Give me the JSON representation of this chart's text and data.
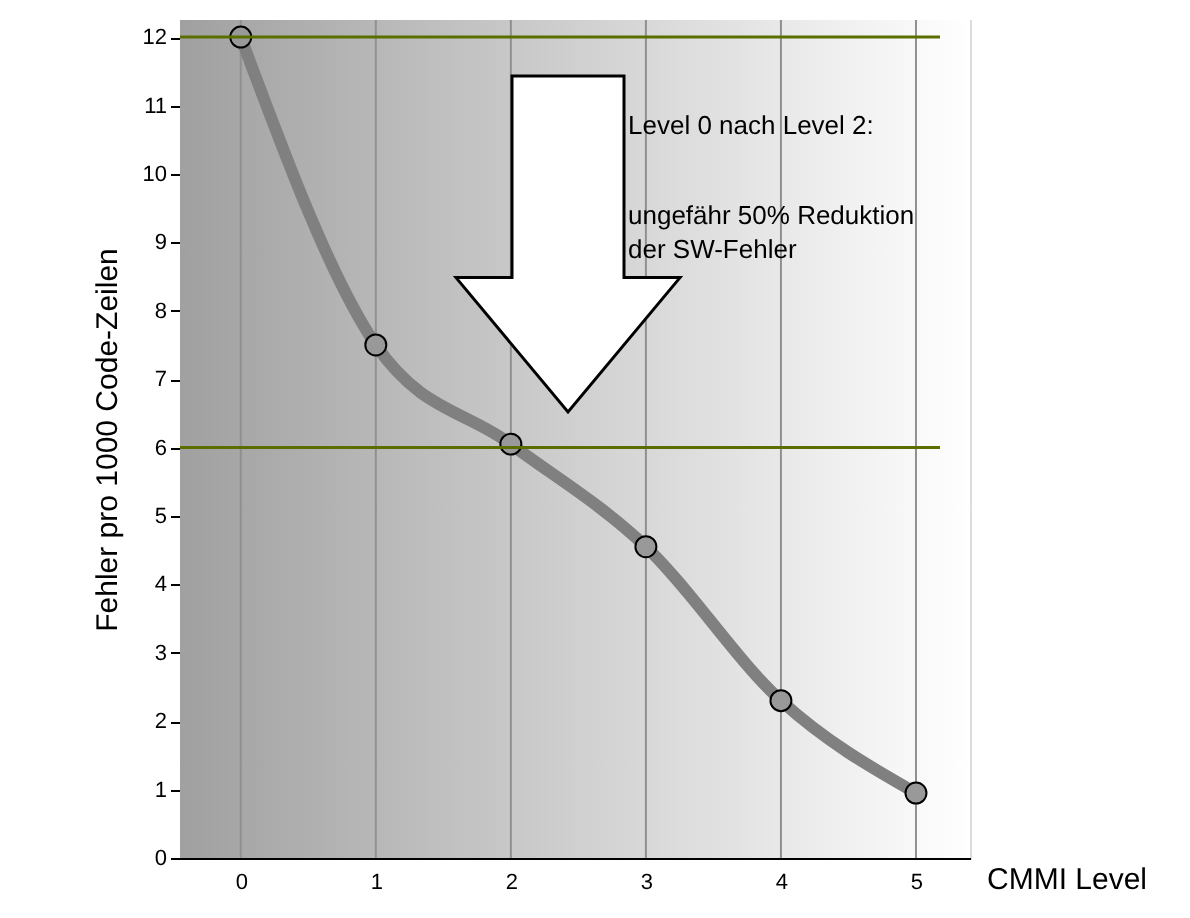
{
  "chart_data": {
    "type": "line",
    "xlabel": "CMMI Level",
    "ylabel": "Fehler pro 1000 Code-Zeilen",
    "x": [
      0,
      1,
      2,
      3,
      4,
      5
    ],
    "series": [
      {
        "color": "#808080",
        "values": [
          12,
          7.5,
          6.05,
          4.55,
          2.3,
          0.95
        ]
      }
    ],
    "marker": "circle",
    "line_style": "solid",
    "grid": "x",
    "xlim": [
      -0.45,
      5.4
    ],
    "xticks": [
      0,
      1,
      2,
      3,
      4,
      5
    ],
    "ylim": [
      0,
      12.25
    ],
    "yticks": [
      0,
      1,
      2,
      3,
      4,
      5,
      6,
      7,
      8,
      9,
      10,
      11,
      12
    ],
    "ref_lines": [
      {
        "axis": "y",
        "value": 12,
        "color": "#5a6e00"
      },
      {
        "axis": "y",
        "value": 6,
        "color": "#5a6e00"
      }
    ],
    "annotations": [
      "Level 0 nach Level 2:",
      "ungefähr 50% Reduktion\nder SW-Fehler"
    ]
  }
}
